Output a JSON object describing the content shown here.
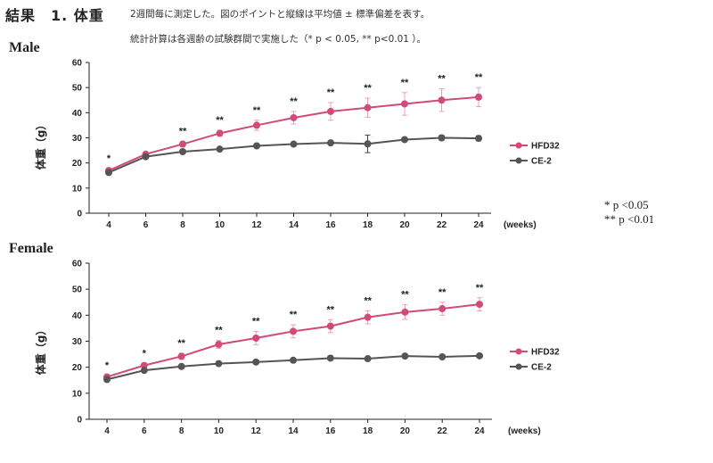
{
  "header": {
    "title": "結果　1. 体重",
    "note_line1": "2週間毎に測定した。図のポイントと縦線は平均値 ± 標準偏差を表す。",
    "note_line2": "統計計算は各週齢の試験群間で実施した（*  p < 0.05, ** p<0.01 ）。"
  },
  "significance_key": [
    "*   p <0.05",
    "** p <0.01"
  ],
  "colors": {
    "HFD32": "#d24a7a",
    "CE-2": "#555555",
    "HFD32_err": "#e8a0b8"
  },
  "chart_data": [
    {
      "panel": "Male",
      "type": "line",
      "x": [
        4,
        6,
        8,
        10,
        12,
        14,
        16,
        18,
        20,
        22,
        24
      ],
      "xlabel": "(weeks)",
      "ylabel": "体重（g）",
      "ylim": [
        0,
        60
      ],
      "yticks": [
        0,
        10,
        20,
        30,
        40,
        50,
        60
      ],
      "legend_position": "right",
      "grid": false,
      "series": [
        {
          "name": "HFD32",
          "values": [
            17,
            23.5,
            27.5,
            31.8,
            35,
            38,
            40.5,
            42,
            43.5,
            45,
            46.2
          ],
          "sd": [
            0.8,
            0.8,
            1,
            1.2,
            2,
            2.5,
            3.5,
            3.8,
            4.5,
            4.5,
            3.8
          ]
        },
        {
          "name": "CE-2",
          "values": [
            16.2,
            22.5,
            24.5,
            25.5,
            26.8,
            27.5,
            28,
            27.6,
            29.3,
            30,
            29.8
          ],
          "sd": [
            0.5,
            0.6,
            0.6,
            0.6,
            0.7,
            0.7,
            0.8,
            3.5,
            0.8,
            1,
            1
          ]
        }
      ],
      "significance": [
        "*",
        "",
        "**",
        "**",
        "**",
        "**",
        "**",
        "**",
        "**",
        "**",
        "**"
      ]
    },
    {
      "panel": "Female",
      "type": "line",
      "x": [
        4,
        6,
        8,
        10,
        12,
        14,
        16,
        18,
        20,
        22,
        24
      ],
      "xlabel": "(weeks)",
      "ylabel": "体重（g）",
      "ylim": [
        0,
        60
      ],
      "yticks": [
        0,
        10,
        20,
        30,
        40,
        50,
        60
      ],
      "legend_position": "right",
      "grid": false,
      "series": [
        {
          "name": "HFD32",
          "values": [
            16.3,
            20.7,
            24.2,
            28.8,
            31.2,
            33.8,
            35.8,
            39.2,
            41.2,
            42.5,
            44.2
          ],
          "sd": [
            0.5,
            0.8,
            1.2,
            1.5,
            2.5,
            2.5,
            2.5,
            2.5,
            2.8,
            2.5,
            2.5
          ]
        },
        {
          "name": "CE-2",
          "values": [
            15.3,
            18.8,
            20.3,
            21.4,
            22,
            22.7,
            23.5,
            23.3,
            24.3,
            24,
            24.4
          ],
          "sd": [
            0.5,
            0.5,
            0.5,
            0.5,
            0.5,
            0.5,
            0.5,
            0.5,
            0.5,
            0.5,
            0.5
          ]
        }
      ],
      "significance": [
        "*",
        "*",
        "**",
        "**",
        "**",
        "**",
        "**",
        "**",
        "**",
        "**",
        "**"
      ]
    }
  ]
}
